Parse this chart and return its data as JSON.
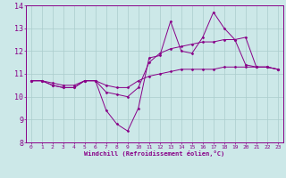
{
  "xlabel": "Windchill (Refroidissement éolien,°C)",
  "xlim": [
    -0.5,
    23.5
  ],
  "ylim": [
    8,
    14
  ],
  "xticks": [
    0,
    1,
    2,
    3,
    4,
    5,
    6,
    7,
    8,
    9,
    10,
    11,
    12,
    13,
    14,
    15,
    16,
    17,
    18,
    19,
    20,
    21,
    22,
    23
  ],
  "yticks": [
    8,
    9,
    10,
    11,
    12,
    13,
    14
  ],
  "bg_color": "#cce8e8",
  "grid_color": "#aacccc",
  "line_color": "#880088",
  "line1": [
    10.7,
    10.7,
    10.5,
    10.4,
    10.4,
    10.7,
    10.7,
    9.4,
    8.8,
    8.5,
    9.5,
    11.7,
    11.8,
    13.3,
    12.0,
    11.9,
    12.6,
    13.7,
    13.0,
    12.5,
    11.4,
    11.3,
    11.3,
    11.2
  ],
  "line2": [
    10.7,
    10.7,
    10.5,
    10.4,
    10.4,
    10.7,
    10.7,
    10.2,
    10.1,
    10.0,
    10.4,
    11.5,
    11.9,
    12.1,
    12.2,
    12.3,
    12.4,
    12.4,
    12.5,
    12.5,
    12.6,
    11.3,
    11.3,
    11.2
  ],
  "line3": [
    10.7,
    10.7,
    10.6,
    10.5,
    10.5,
    10.7,
    10.7,
    10.5,
    10.4,
    10.4,
    10.7,
    10.9,
    11.0,
    11.1,
    11.2,
    11.2,
    11.2,
    11.2,
    11.3,
    11.3,
    11.3,
    11.3,
    11.3,
    11.2
  ]
}
